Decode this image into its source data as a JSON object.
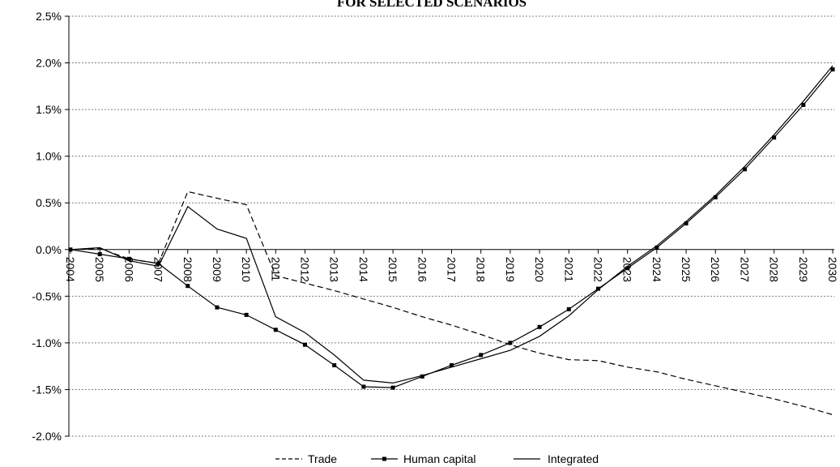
{
  "chart_data": {
    "type": "line",
    "title": "FOR SELECTED SCENARIOS",
    "x": [
      "2004",
      "2005",
      "2006",
      "2007",
      "2008",
      "2009",
      "2010",
      "2011",
      "2012",
      "2013",
      "2014",
      "2015",
      "2016",
      "2017",
      "2018",
      "2019",
      "2020",
      "2021",
      "2022",
      "2023",
      "2024",
      "2025",
      "2026",
      "2027",
      "2028",
      "2029",
      "2030"
    ],
    "ylim": [
      -2.0,
      2.5
    ],
    "yticks": [
      "-2.0%",
      "-1.5%",
      "-1.0%",
      "-0.5%",
      "0.0%",
      "0.5%",
      "1.0%",
      "1.5%",
      "2.0%",
      "2.5%"
    ],
    "ytick_values": [
      -2.0,
      -1.5,
      -1.0,
      -0.5,
      0.0,
      0.5,
      1.0,
      1.5,
      2.0,
      2.5
    ],
    "grid": true,
    "legend_position": "bottom",
    "series": [
      {
        "name": "Trade",
        "style": "dashed",
        "marker": "none",
        "values": [
          0.0,
          0.01,
          -0.1,
          -0.15,
          0.62,
          0.55,
          0.48,
          -0.28,
          -0.36,
          -0.44,
          -0.53,
          -0.62,
          -0.72,
          -0.81,
          -0.91,
          -1.02,
          -1.11,
          -1.18,
          -1.19,
          -1.26,
          -1.31,
          -1.39,
          -1.46,
          -1.53,
          -1.6,
          -1.68,
          -1.77
        ]
      },
      {
        "name": "Human capital",
        "style": "solid",
        "marker": "square",
        "values": [
          0.0,
          -0.05,
          -0.1,
          -0.15,
          -0.39,
          -0.62,
          -0.7,
          -0.86,
          -1.02,
          -1.24,
          -1.47,
          -1.48,
          -1.36,
          -1.24,
          -1.13,
          -1.0,
          -0.83,
          -0.64,
          -0.42,
          -0.2,
          0.02,
          0.28,
          0.56,
          0.86,
          1.2,
          1.55,
          1.93
        ]
      },
      {
        "name": "Integrated",
        "style": "solid",
        "marker": "none",
        "values": [
          0.0,
          0.02,
          -0.12,
          -0.18,
          0.46,
          0.22,
          0.12,
          -0.72,
          -0.89,
          -1.13,
          -1.4,
          -1.43,
          -1.35,
          -1.26,
          -1.17,
          -1.08,
          -0.93,
          -0.71,
          -0.43,
          -0.18,
          0.04,
          0.3,
          0.58,
          0.89,
          1.23,
          1.59,
          1.97
        ]
      }
    ]
  }
}
